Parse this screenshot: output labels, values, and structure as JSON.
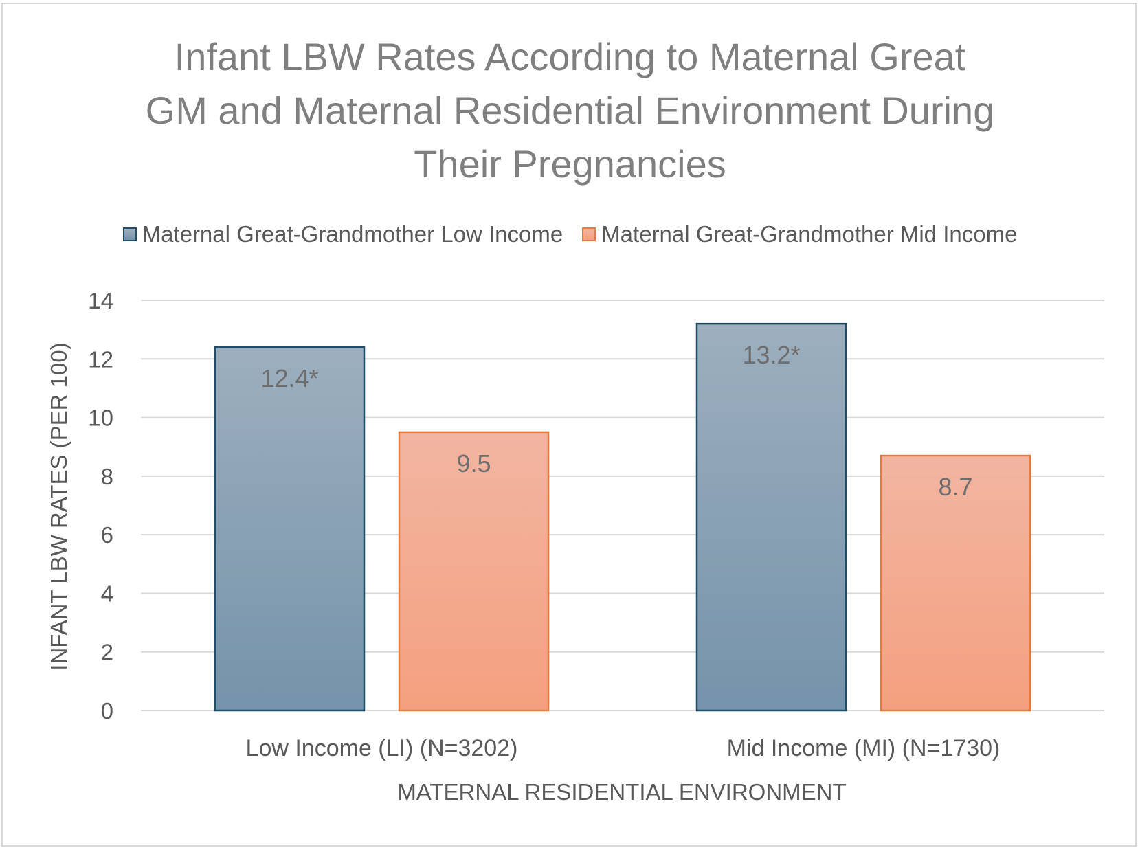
{
  "chart_data": {
    "type": "bar",
    "title_lines": [
      "Infant LBW Rates According to Maternal Great",
      "GM and Maternal Residential Environment During",
      "Their Pregnancies"
    ],
    "xlabel": "MATERNAL RESIDENTIAL ENVIRONMENT",
    "ylabel": "INFANT LBW RATES (PER 100)",
    "categories": [
      "Low Income (LI) (N=3202)",
      "Mid Income (MI) (N=1730)"
    ],
    "series": [
      {
        "name": "Maternal Great-Grandmother Low Income",
        "values": [
          12.4,
          13.2
        ],
        "data_labels": [
          "12.4*",
          "13.2*"
        ],
        "fill_top": "#9dafbe",
        "fill_bottom": "#7593ab",
        "stroke": "#1f4e6b"
      },
      {
        "name": "Maternal Great-Grandmother Mid Income",
        "values": [
          9.5,
          8.7
        ],
        "data_labels": [
          "9.5",
          "8.7"
        ],
        "fill_top": "#f2b5a1",
        "fill_bottom": "#f4a07f",
        "stroke": "#e87a3d"
      }
    ],
    "ylim": [
      0,
      14
    ],
    "yticks": [
      0,
      2,
      4,
      6,
      8,
      10,
      12,
      14
    ],
    "grid": true,
    "legend_position": "top"
  }
}
